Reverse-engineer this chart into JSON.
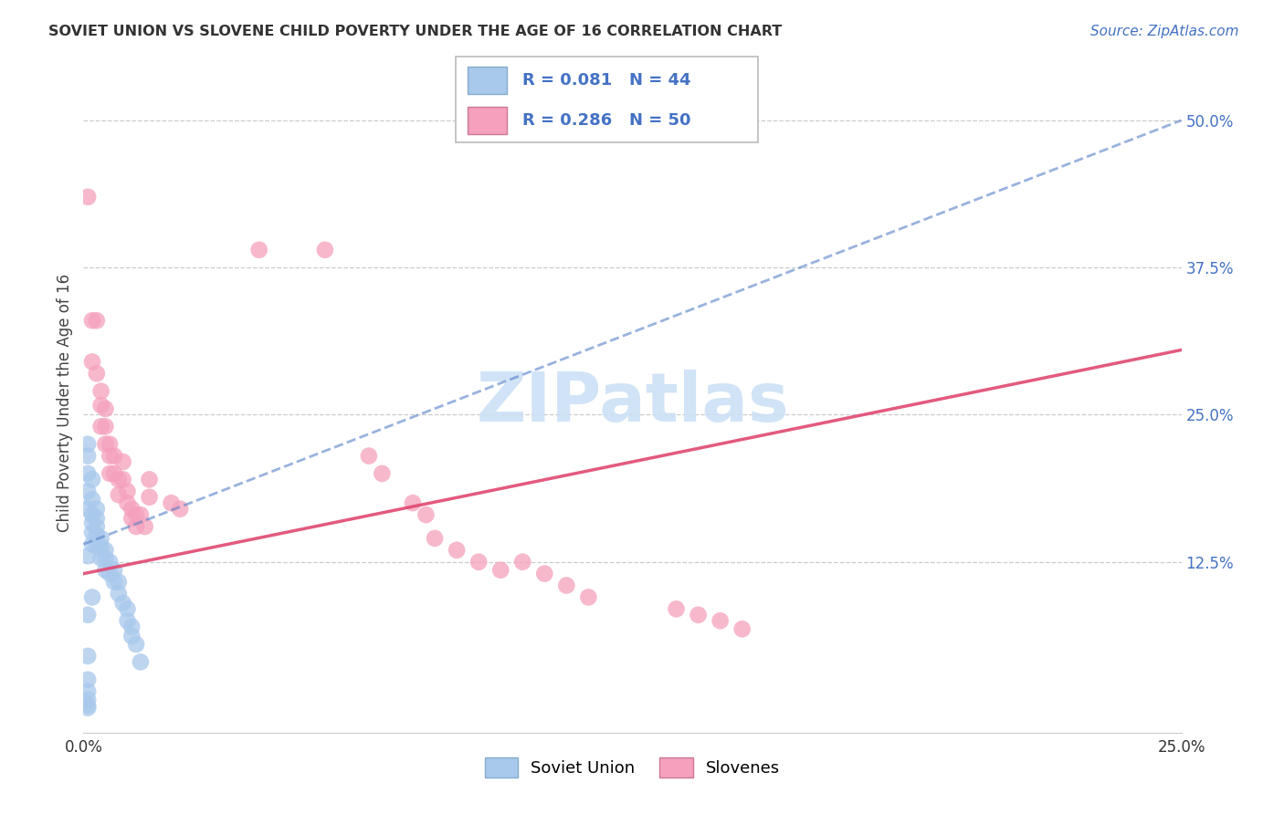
{
  "title": "SOVIET UNION VS SLOVENE CHILD POVERTY UNDER THE AGE OF 16 CORRELATION CHART",
  "source": "Source: ZipAtlas.com",
  "ylabel": "Child Poverty Under the Age of 16",
  "xlim": [
    0.0,
    0.25
  ],
  "ylim": [
    -0.02,
    0.54
  ],
  "R_soviet": 0.081,
  "N_soviet": 44,
  "R_slovene": 0.286,
  "N_slovene": 50,
  "soviet_color": "#a8c8ec",
  "slovene_color": "#f5a0bc",
  "soviet_line_color": "#5580c8",
  "slovene_line_color": "#e04870",
  "soviet_line_dash": true,
  "grid_color": "#cccccc",
  "watermark_color": "#cce0f5",
  "soviet_points_x": [
    0.001,
    0.001,
    0.001,
    0.001,
    0.001,
    0.001,
    0.001,
    0.001,
    0.002,
    0.002,
    0.002,
    0.002,
    0.002,
    0.002,
    0.002,
    0.003,
    0.003,
    0.003,
    0.003,
    0.003,
    0.004,
    0.004,
    0.004,
    0.005,
    0.005,
    0.005,
    0.006,
    0.006,
    0.007,
    0.007,
    0.008,
    0.008,
    0.009,
    0.01,
    0.01,
    0.011,
    0.011,
    0.012,
    0.013,
    0.001,
    0.001,
    0.001,
    0.001,
    0.001
  ],
  "soviet_points_y": [
    0.225,
    0.215,
    0.2,
    0.185,
    0.17,
    0.13,
    0.08,
    0.045,
    0.195,
    0.178,
    0.165,
    0.158,
    0.15,
    0.14,
    0.095,
    0.17,
    0.162,
    0.155,
    0.148,
    0.138,
    0.145,
    0.138,
    0.128,
    0.135,
    0.128,
    0.118,
    0.125,
    0.115,
    0.118,
    0.108,
    0.108,
    0.098,
    0.09,
    0.085,
    0.075,
    0.07,
    0.062,
    0.055,
    0.04,
    0.025,
    0.015,
    0.008,
    0.003,
    0.001
  ],
  "slovene_points_x": [
    0.001,
    0.002,
    0.002,
    0.003,
    0.003,
    0.004,
    0.004,
    0.004,
    0.005,
    0.005,
    0.005,
    0.006,
    0.006,
    0.006,
    0.007,
    0.007,
    0.008,
    0.008,
    0.009,
    0.009,
    0.01,
    0.01,
    0.011,
    0.011,
    0.012,
    0.012,
    0.013,
    0.014,
    0.015,
    0.015,
    0.02,
    0.022,
    0.04,
    0.055,
    0.065,
    0.068,
    0.075,
    0.078,
    0.08,
    0.085,
    0.09,
    0.095,
    0.1,
    0.105,
    0.11,
    0.115,
    0.135,
    0.14,
    0.145,
    0.15
  ],
  "slovene_points_y": [
    0.435,
    0.33,
    0.295,
    0.33,
    0.285,
    0.27,
    0.258,
    0.24,
    0.255,
    0.24,
    0.225,
    0.225,
    0.215,
    0.2,
    0.215,
    0.2,
    0.195,
    0.182,
    0.21,
    0.195,
    0.185,
    0.175,
    0.17,
    0.162,
    0.165,
    0.155,
    0.165,
    0.155,
    0.195,
    0.18,
    0.175,
    0.17,
    0.39,
    0.39,
    0.215,
    0.2,
    0.175,
    0.165,
    0.145,
    0.135,
    0.125,
    0.118,
    0.125,
    0.115,
    0.105,
    0.095,
    0.085,
    0.08,
    0.075,
    0.068
  ]
}
